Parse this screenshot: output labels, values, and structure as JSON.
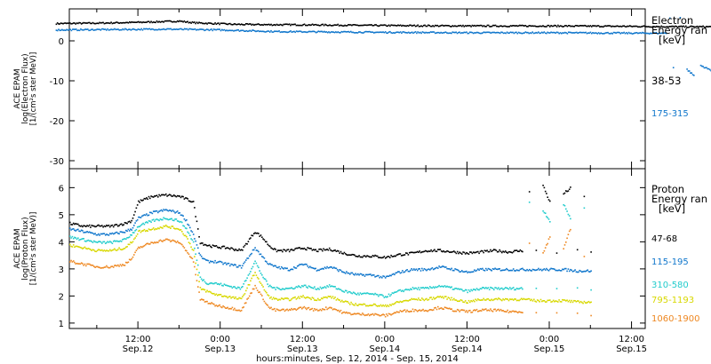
{
  "chart_data": [
    {
      "type": "scatter",
      "panel": "top",
      "ylabel_lines": [
        "ACE EPAM",
        "log(Electron Flux)",
        "[1/(cm²s ster MeV)]"
      ],
      "ylim": [
        -32,
        8
      ],
      "yticks": [
        0,
        -10,
        -20,
        -30
      ],
      "legend_title": [
        "Electron",
        "Energy ran",
        "[keV]"
      ],
      "series": [
        {
          "name": "38-53",
          "color": "#000000",
          "x": [
            0,
            6,
            12,
            18,
            20,
            26,
            32,
            35,
            48,
            60,
            72,
            84,
            92,
            96,
            100,
            104
          ],
          "y": [
            4.5,
            4.6,
            4.8,
            5.1,
            4.7,
            4.3,
            4.2,
            4.2,
            4.0,
            3.9,
            3.9,
            3.8,
            3.7,
            3.7,
            3.6,
            3.5
          ]
        },
        {
          "name": "175-315",
          "color": "#1177cc",
          "x": [
            0,
            8,
            16,
            24,
            32,
            48,
            60,
            72,
            84,
            89,
            89.5,
            90,
            91,
            92,
            93,
            94,
            95,
            96,
            97,
            98,
            99,
            100,
            101,
            102,
            103,
            104
          ],
          "y": [
            2.9,
            3.0,
            3.1,
            2.9,
            2.5,
            2.3,
            2.2,
            2.2,
            2.1,
            2.1,
            6.0,
            -6.5,
            6.0,
            -7.0,
            -8.5,
            -6.0,
            -6.8,
            -7.5,
            5.8,
            -6.2,
            -9.0,
            -7.0,
            5.8,
            -21.0,
            6.0,
            2.2
          ]
        }
      ]
    },
    {
      "type": "scatter",
      "panel": "bottom",
      "ylabel_lines": [
        "ACE EPAM",
        "log(Proton Flux)",
        "[1/(cm²s ster MeV)]"
      ],
      "ylim": [
        0.8,
        6.7
      ],
      "yticks": [
        1,
        2,
        3,
        4,
        5,
        6
      ],
      "legend_title": [
        "Proton",
        "Energy ran",
        "[keV]"
      ],
      "xlabel": "hours:minutes, Sep. 12, 2014 - Sep. 15, 2014",
      "xticks": [
        {
          "x": 12,
          "time": "12:00",
          "date": "Sep.12"
        },
        {
          "x": 24,
          "time": "0:00",
          "date": "Sep.13"
        },
        {
          "x": 36,
          "time": "12:00",
          "date": "Sep.13"
        },
        {
          "x": 48,
          "time": "0:00",
          "date": "Sep.14"
        },
        {
          "x": 60,
          "time": "12:00",
          "date": "Sep.14"
        },
        {
          "x": 72,
          "time": "0:00",
          "date": "Sep.15"
        },
        {
          "x": 84,
          "time": "12:00",
          "date": "Sep.15"
        }
      ],
      "xlim": [
        2,
        86
      ],
      "series": [
        {
          "name": "47-68",
          "color": "#000000",
          "x": [
            2,
            4,
            6,
            8,
            10,
            11,
            12,
            14,
            16,
            18,
            19,
            20,
            21,
            22,
            23,
            25,
            27,
            29,
            30,
            31,
            32,
            34,
            36,
            38,
            40,
            42,
            44,
            46,
            48,
            50,
            52,
            54,
            56,
            58,
            60,
            62,
            64,
            66,
            68,
            69,
            70,
            71,
            72,
            73,
            74,
            75,
            76,
            77,
            78
          ],
          "y": [
            4.7,
            4.6,
            4.6,
            4.6,
            4.7,
            4.8,
            5.5,
            5.7,
            5.75,
            5.7,
            5.6,
            5.5,
            4.0,
            3.9,
            3.85,
            3.8,
            3.7,
            4.4,
            4.2,
            3.9,
            3.7,
            3.7,
            3.8,
            3.7,
            3.75,
            3.6,
            3.5,
            3.5,
            3.45,
            3.55,
            3.6,
            3.7,
            3.7,
            3.65,
            3.6,
            3.65,
            3.7,
            3.65,
            3.7,
            5.9,
            3.7,
            6.1,
            5.5,
            3.6,
            5.8,
            6.0,
            3.7,
            5.7,
            3.65
          ]
        },
        {
          "name": "115-195",
          "color": "#1177cc",
          "x": [
            2,
            4,
            6,
            8,
            10,
            11,
            12,
            14,
            16,
            18,
            19,
            20,
            21,
            22,
            23,
            25,
            27,
            29,
            30,
            31,
            32,
            34,
            36,
            38,
            40,
            42,
            44,
            46,
            48,
            50,
            52,
            54,
            56,
            58,
            60,
            62,
            64,
            66,
            68,
            70,
            72,
            74,
            76,
            78
          ],
          "y": [
            4.5,
            4.4,
            4.3,
            4.3,
            4.4,
            4.5,
            4.9,
            5.1,
            5.2,
            5.1,
            4.8,
            4.3,
            3.5,
            3.3,
            3.3,
            3.2,
            3.1,
            3.8,
            3.5,
            3.2,
            3.1,
            3.0,
            3.2,
            3.0,
            3.1,
            2.9,
            2.8,
            2.8,
            2.7,
            2.9,
            3.0,
            3.0,
            3.1,
            3.0,
            2.9,
            3.0,
            3.0,
            3.0,
            3.0,
            3.0,
            3.0,
            3.0,
            2.95,
            2.95
          ]
        },
        {
          "name": "310-580",
          "color": "#22cccc",
          "x": [
            2,
            4,
            6,
            8,
            10,
            11,
            12,
            14,
            16,
            18,
            19,
            20,
            21,
            22,
            23,
            25,
            27,
            29,
            30,
            31,
            32,
            34,
            36,
            38,
            40,
            42,
            44,
            46,
            48,
            50,
            52,
            54,
            56,
            58,
            60,
            62,
            64,
            66,
            68,
            69,
            70,
            71,
            72,
            73,
            74,
            75,
            76,
            77,
            78
          ],
          "y": [
            4.2,
            4.1,
            4.0,
            4.0,
            4.1,
            4.3,
            4.6,
            4.8,
            4.9,
            4.8,
            4.5,
            4.0,
            2.7,
            2.5,
            2.5,
            2.4,
            2.3,
            3.3,
            2.8,
            2.4,
            2.3,
            2.3,
            2.4,
            2.3,
            2.4,
            2.2,
            2.1,
            2.1,
            2.0,
            2.2,
            2.3,
            2.3,
            2.4,
            2.3,
            2.2,
            2.3,
            2.3,
            2.3,
            2.3,
            5.5,
            2.3,
            5.2,
            4.8,
            2.3,
            5.4,
            4.9,
            2.3,
            5.3,
            2.25
          ]
        },
        {
          "name": "795-1193",
          "color": "#d8d800",
          "x": [
            2,
            4,
            6,
            8,
            10,
            11,
            12,
            14,
            16,
            18,
            19,
            20,
            21,
            22,
            23,
            25,
            27,
            29,
            30,
            31,
            32,
            34,
            36,
            38,
            40,
            42,
            44,
            46,
            48,
            50,
            52,
            54,
            56,
            58,
            60,
            62,
            64,
            66,
            68,
            70,
            72,
            74,
            76,
            78
          ],
          "y": [
            3.9,
            3.8,
            3.7,
            3.7,
            3.8,
            4.0,
            4.4,
            4.5,
            4.6,
            4.5,
            4.2,
            3.7,
            2.3,
            2.2,
            2.1,
            2.0,
            1.9,
            2.9,
            2.4,
            2.0,
            1.9,
            1.9,
            2.0,
            1.9,
            2.0,
            1.8,
            1.7,
            1.7,
            1.65,
            1.8,
            1.9,
            1.9,
            2.0,
            1.9,
            1.8,
            1.9,
            1.9,
            1.9,
            1.9,
            1.85,
            1.85,
            1.85,
            1.8,
            1.8
          ]
        },
        {
          "name": "1060-1900",
          "color": "#ee8822",
          "x": [
            2,
            4,
            6,
            8,
            10,
            11,
            12,
            14,
            16,
            18,
            19,
            20,
            21,
            22,
            23,
            25,
            27,
            29,
            30,
            31,
            32,
            34,
            36,
            38,
            40,
            42,
            44,
            46,
            48,
            50,
            52,
            54,
            56,
            58,
            60,
            62,
            64,
            66,
            68,
            69,
            70,
            71,
            72,
            73,
            74,
            75,
            76,
            77,
            78
          ],
          "y": [
            3.3,
            3.2,
            3.1,
            3.1,
            3.2,
            3.4,
            3.8,
            4.0,
            4.1,
            4.0,
            3.7,
            3.3,
            1.9,
            1.8,
            1.7,
            1.6,
            1.5,
            2.4,
            2.0,
            1.6,
            1.5,
            1.5,
            1.6,
            1.5,
            1.6,
            1.4,
            1.35,
            1.35,
            1.3,
            1.45,
            1.5,
            1.5,
            1.6,
            1.5,
            1.45,
            1.5,
            1.5,
            1.45,
            1.45,
            4.0,
            1.4,
            3.6,
            4.2,
            1.4,
            3.8,
            4.5,
            1.35,
            3.5,
            1.3
          ]
        }
      ]
    }
  ]
}
